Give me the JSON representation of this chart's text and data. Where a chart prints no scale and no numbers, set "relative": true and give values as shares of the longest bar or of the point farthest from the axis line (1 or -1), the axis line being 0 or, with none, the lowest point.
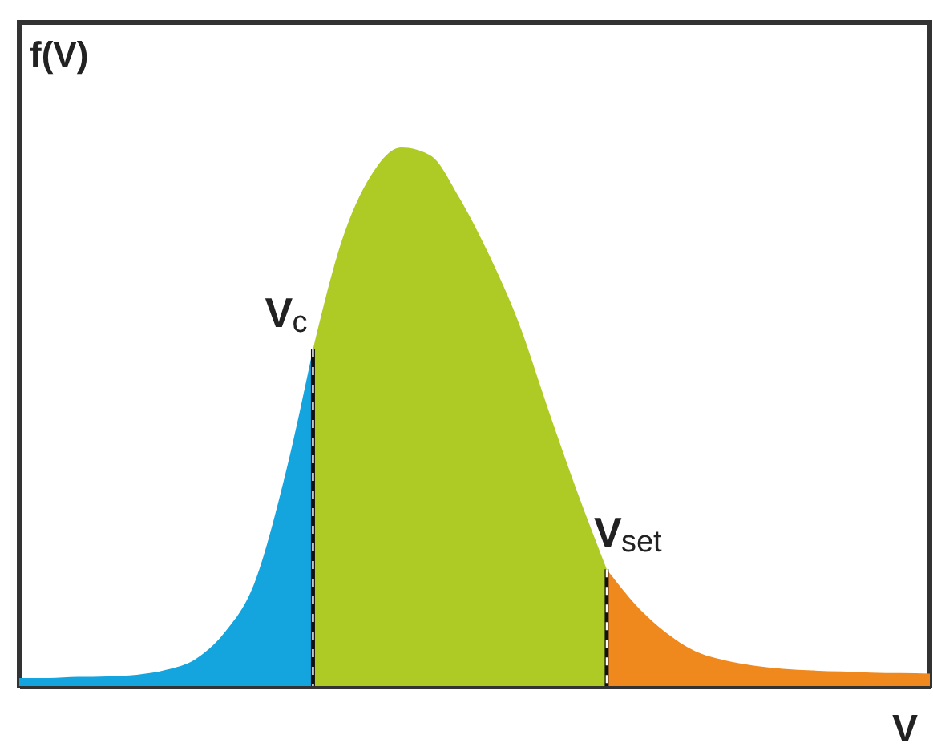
{
  "chart_data": {
    "type": "area",
    "relative": true,
    "xlabel": "V",
    "ylabel": "f(V)",
    "annotations": [
      "V$_{c}$",
      "V$_{set}$"
    ],
    "categories": [
      null,
      null,
      null,
      null,
      null,
      null,
      null,
      null,
      null,
      null,
      null,
      null,
      null,
      null,
      null,
      null,
      null,
      null,
      null,
      null,
      null,
      null,
      null,
      null,
      null,
      null,
      null,
      null,
      null,
      null,
      null,
      null
    ],
    "series": [
      {
        "color": "#14a4de",
        "values": [
          0.015,
          0.015,
          0.017,
          0.018,
          0.021,
          0.03,
          0.05,
          0.1,
          0.19,
          0.38,
          0.625,
          null,
          null,
          null,
          null,
          null,
          null,
          null,
          null,
          null,
          null,
          null,
          null,
          null,
          null,
          null,
          null,
          null,
          null,
          null,
          null,
          null
        ]
      },
      {
        "color": "#adcb24",
        "values": [
          null,
          null,
          null,
          null,
          null,
          null,
          null,
          null,
          null,
          null,
          0.625,
          0.83,
          0.95,
          1,
          0.985,
          0.905,
          0.8,
          0.675,
          0.515,
          0.36,
          0.217,
          null,
          null,
          null,
          null,
          null,
          null,
          null,
          null,
          null,
          null,
          null
        ]
      },
      {
        "color": "#f0891d",
        "values": [
          null,
          null,
          null,
          null,
          null,
          null,
          null,
          null,
          null,
          null,
          null,
          null,
          null,
          null,
          null,
          null,
          null,
          null,
          null,
          null,
          0.217,
          0.15,
          0.1,
          0.065,
          0.048,
          0.038,
          0.032,
          0.029,
          0.027,
          0.025,
          0.024,
          0.023
        ]
      }
    ]
  }
}
